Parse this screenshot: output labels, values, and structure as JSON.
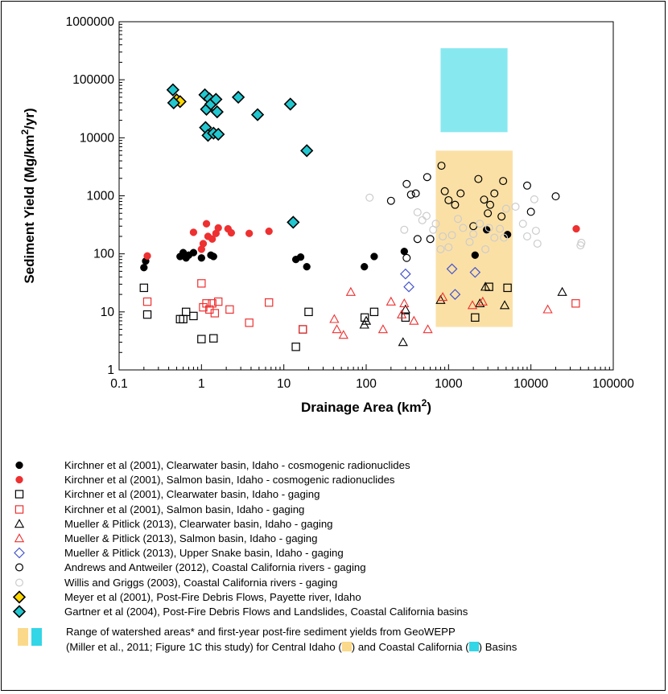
{
  "chart_data": {
    "type": "scatter",
    "x_scale": "log",
    "y_scale": "log",
    "xlim": [
      0.1,
      100000
    ],
    "ylim": [
      1,
      1000000
    ],
    "xlabel": "Drainage Area (km",
    "xlabel_sup": "2",
    "xlabel_end": ")",
    "ylabel": "Sediment Yield (Mg/km",
    "ylabel_sup": "2",
    "ylabel_end": "/yr)",
    "x_ticks": [
      "0.1",
      "1",
      "10",
      "100",
      "1000",
      "10000",
      "100000"
    ],
    "y_ticks": [
      "1",
      "10",
      "100",
      "1000",
      "10000",
      "100000",
      "1000000"
    ],
    "grid": false,
    "legend_placement": "below",
    "regions": [
      {
        "name": "Central Idaho",
        "x": [
          700,
          6000
        ],
        "y": [
          5.5,
          6000
        ],
        "color": "#fbe0a6"
      },
      {
        "name": "Coastal California",
        "x": [
          800,
          5200
        ],
        "y": [
          12500,
          350000
        ],
        "color": "#88e8f0"
      }
    ],
    "series": [
      {
        "name": "Kirchner et al (2001), Clearwater basin, Idaho - cosmogenic radionuclides",
        "marker": "filled-circle",
        "color": "#000000",
        "points": [
          [
            0.2,
            58
          ],
          [
            0.21,
            75
          ],
          [
            0.55,
            90
          ],
          [
            0.6,
            105
          ],
          [
            0.65,
            85
          ],
          [
            0.7,
            95
          ],
          [
            0.8,
            105
          ],
          [
            1.0,
            85
          ],
          [
            1.3,
            95
          ],
          [
            1.4,
            90
          ],
          [
            14,
            80
          ],
          [
            16,
            88
          ],
          [
            19,
            60
          ],
          [
            95,
            60
          ],
          [
            125,
            90
          ],
          [
            290,
            110
          ],
          [
            2900,
            260
          ],
          [
            5200,
            215
          ],
          [
            2100,
            95
          ]
        ]
      },
      {
        "name": "Kirchner et al (2001), Salmon basin, Idaho - cosmogenic radionuclides",
        "marker": "filled-circle",
        "color": "#ee3030",
        "points": [
          [
            0.22,
            92
          ],
          [
            0.8,
            235
          ],
          [
            1.0,
            120
          ],
          [
            1.05,
            150
          ],
          [
            1.15,
            330
          ],
          [
            1.2,
            200
          ],
          [
            1.35,
            180
          ],
          [
            1.5,
            225
          ],
          [
            1.6,
            280
          ],
          [
            2.1,
            270
          ],
          [
            2.3,
            230
          ],
          [
            3.8,
            225
          ],
          [
            6.6,
            245
          ],
          [
            35500,
            270
          ]
        ]
      },
      {
        "name": "Kirchner et al (2001), Clearwater basin, Idaho - gaging",
        "marker": "open-square",
        "color": "#000000",
        "points": [
          [
            0.2,
            26
          ],
          [
            0.22,
            9
          ],
          [
            0.55,
            7.5
          ],
          [
            0.6,
            7.5
          ],
          [
            0.65,
            10
          ],
          [
            0.8,
            8.5
          ],
          [
            1.0,
            3.4
          ],
          [
            1.4,
            3.5
          ],
          [
            14,
            2.5
          ],
          [
            17,
            5
          ],
          [
            20,
            10
          ],
          [
            96,
            8
          ],
          [
            125,
            10
          ],
          [
            300,
            8
          ],
          [
            3100,
            27
          ],
          [
            5200,
            26
          ],
          [
            2100,
            8
          ]
        ]
      },
      {
        "name": "Kirchner et al (2001), Salmon basin, Idaho - gaging",
        "marker": "open-square",
        "color": "#ee3030",
        "points": [
          [
            0.22,
            15
          ],
          [
            1.0,
            31
          ],
          [
            1.05,
            12
          ],
          [
            1.15,
            14
          ],
          [
            1.25,
            11
          ],
          [
            1.35,
            14
          ],
          [
            1.45,
            9.5
          ],
          [
            1.6,
            15
          ],
          [
            2.2,
            11
          ],
          [
            3.8,
            6.5
          ],
          [
            6.6,
            14.5
          ],
          [
            17,
            5
          ],
          [
            35000,
            14
          ]
        ]
      },
      {
        "name": "Mueller & Pitlick (2013), Clearwater basin, Idaho - gaging",
        "marker": "open-triangle",
        "color": "#000000",
        "points": [
          [
            95,
            6
          ],
          [
            100,
            7
          ],
          [
            280,
            3
          ],
          [
            300,
            11
          ],
          [
            800,
            16
          ],
          [
            2400,
            14
          ],
          [
            2800,
            27
          ],
          [
            4800,
            13
          ],
          [
            24000,
            22
          ]
        ]
      },
      {
        "name": "Mueller & Pitlick (2013), Salmon basin, Idaho - gaging",
        "marker": "open-triangle",
        "color": "#ee3030",
        "points": [
          [
            41,
            7.5
          ],
          [
            44,
            5
          ],
          [
            53,
            4
          ],
          [
            65,
            22
          ],
          [
            160,
            5
          ],
          [
            200,
            15
          ],
          [
            270,
            9
          ],
          [
            290,
            14
          ],
          [
            380,
            7
          ],
          [
            560,
            5
          ],
          [
            850,
            18
          ],
          [
            1950,
            13
          ],
          [
            2600,
            15
          ],
          [
            16000,
            11
          ]
        ]
      },
      {
        "name": "Mueller & Pitlick (2013), Upper Snake basin, Idaho - gaging",
        "marker": "open-diamond",
        "color": "#4455cc",
        "points": [
          [
            300,
            45
          ],
          [
            330,
            27
          ],
          [
            1100,
            55
          ],
          [
            1200,
            20
          ],
          [
            2100,
            48
          ]
        ]
      },
      {
        "name": "Andrews and Antweiler (2012), Coastal California rivers - gaging",
        "marker": "open-circle",
        "color": "#000000",
        "points": [
          [
            200,
            820
          ],
          [
            310,
            1600
          ],
          [
            350,
            1050
          ],
          [
            400,
            1100
          ],
          [
            420,
            180
          ],
          [
            550,
            2100
          ],
          [
            600,
            180
          ],
          [
            820,
            3300
          ],
          [
            900,
            1200
          ],
          [
            1000,
            840
          ],
          [
            1200,
            700
          ],
          [
            1400,
            1100
          ],
          [
            2000,
            300
          ],
          [
            2300,
            1950
          ],
          [
            2700,
            860
          ],
          [
            3000,
            500
          ],
          [
            3200,
            700
          ],
          [
            3600,
            1100
          ],
          [
            4400,
            440
          ],
          [
            4600,
            1800
          ],
          [
            9000,
            1500
          ],
          [
            10000,
            530
          ],
          [
            20000,
            980
          ],
          [
            310,
            85
          ]
        ]
      },
      {
        "name": "Willis and Griggs (2003), Coastal California rivers - gaging",
        "marker": "open-circle",
        "color": "#cccccc",
        "points": [
          [
            110,
            930
          ],
          [
            290,
            260
          ],
          [
            420,
            520
          ],
          [
            480,
            380
          ],
          [
            540,
            450
          ],
          [
            650,
            260
          ],
          [
            700,
            330
          ],
          [
            800,
            120
          ],
          [
            850,
            200
          ],
          [
            1000,
            130
          ],
          [
            1100,
            210
          ],
          [
            1300,
            400
          ],
          [
            1500,
            280
          ],
          [
            1800,
            160
          ],
          [
            2000,
            220
          ],
          [
            2400,
            330
          ],
          [
            2800,
            120
          ],
          [
            3100,
            280
          ],
          [
            3600,
            190
          ],
          [
            4200,
            270
          ],
          [
            4700,
            190
          ],
          [
            5000,
            600
          ],
          [
            6500,
            650
          ],
          [
            8000,
            330
          ],
          [
            9000,
            200
          ],
          [
            11000,
            870
          ],
          [
            11500,
            250
          ],
          [
            12000,
            150
          ],
          [
            40000,
            140
          ],
          [
            41000,
            155
          ]
        ]
      },
      {
        "name": "Meyer et al (2001), Post-Fire Debris Flows, Payette river, Idaho",
        "marker": "filled-diamond",
        "color": "#ffd700",
        "points": [
          [
            0.5,
            45000
          ],
          [
            0.55,
            42000
          ]
        ]
      },
      {
        "name": "Gartner et al (2004), Post-Fire Debris Flows and Landslides, Coastal California basins",
        "marker": "filled-diamond",
        "color": "#22c7cf",
        "points": [
          [
            0.45,
            67000
          ],
          [
            0.46,
            40000
          ],
          [
            1.1,
            55000
          ],
          [
            1.12,
            15000
          ],
          [
            1.15,
            31000
          ],
          [
            1.2,
            11000
          ],
          [
            1.25,
            47000
          ],
          [
            1.3,
            38000
          ],
          [
            1.4,
            12000
          ],
          [
            1.5,
            46000
          ],
          [
            1.55,
            28000
          ],
          [
            1.6,
            11500
          ],
          [
            2.8,
            50000
          ],
          [
            4.8,
            25000
          ],
          [
            12,
            38000
          ],
          [
            13,
            350
          ],
          [
            19,
            6000
          ]
        ]
      }
    ]
  },
  "range_note": {
    "line1": "Range of watershed areas* and first-year post-fire sediment yields from GeoWEPP",
    "line2_a": " (Miller et al., 2011; Figure 1C this study) for Central Idaho (",
    "line2_b": ") and Coastal California (",
    "line2_c": ") Basins",
    "colors": {
      "idaho": "#fbd98a",
      "california": "#33d6e6"
    }
  }
}
